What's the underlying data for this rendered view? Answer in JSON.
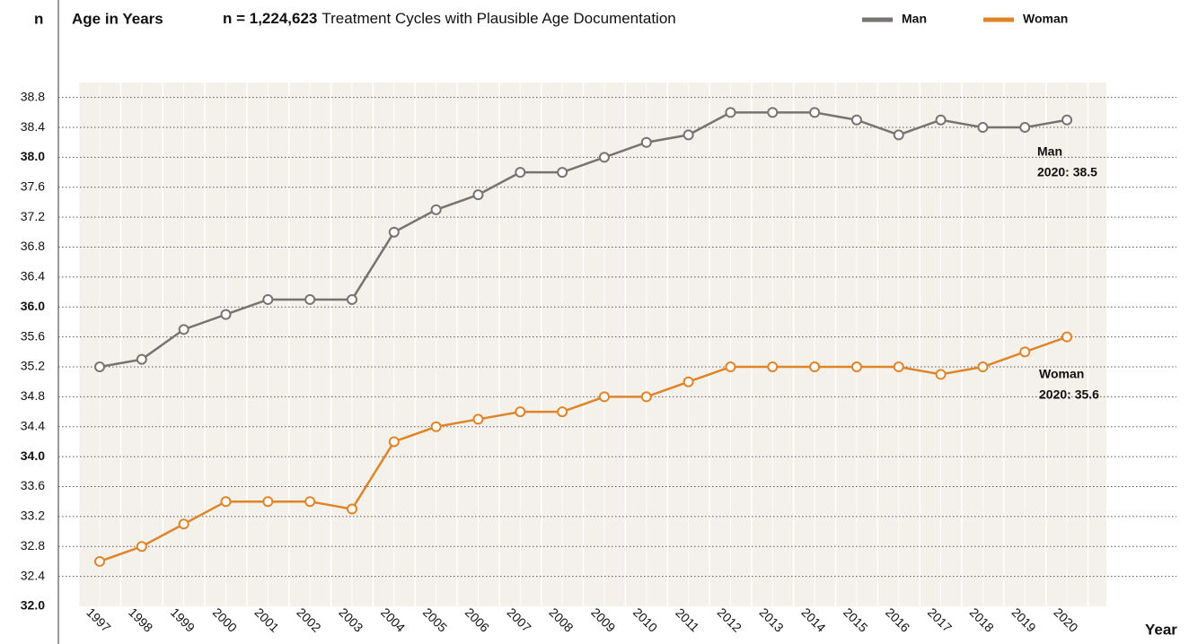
{
  "chart_data": {
    "type": "line",
    "y_label": "n",
    "title": "Age in Years",
    "subtitle_bold": "n = 1,224,623",
    "subtitle": "Treatment Cycles with Plausible Age Documentation",
    "x_label": "Year",
    "categories": [
      "1997",
      "1998",
      "1999",
      "2000",
      "2001",
      "2002",
      "2003",
      "2004",
      "2005",
      "2006",
      "2007",
      "2008",
      "2009",
      "2010",
      "2011",
      "2012",
      "2013",
      "2014",
      "2015",
      "2016",
      "2017",
      "2018",
      "2019",
      "2020"
    ],
    "series": [
      {
        "name": "Man",
        "color": "#77736f",
        "values": [
          35.2,
          35.3,
          35.7,
          35.9,
          36.1,
          36.1,
          36.1,
          37.0,
          37.3,
          37.5,
          37.8,
          37.8,
          38.0,
          38.2,
          38.3,
          38.6,
          38.6,
          38.6,
          38.5,
          38.3,
          38.5,
          38.4,
          38.4,
          38.5
        ]
      },
      {
        "name": "Woman",
        "color": "#e0842a",
        "values": [
          32.6,
          32.8,
          33.1,
          33.4,
          33.4,
          33.4,
          33.3,
          34.2,
          34.4,
          34.5,
          34.6,
          34.6,
          34.8,
          34.8,
          35.0,
          35.2,
          35.2,
          35.2,
          35.2,
          35.2,
          35.1,
          35.2,
          35.4,
          35.6
        ]
      }
    ],
    "ylim": [
      32,
      39
    ],
    "yticks": [
      {
        "value": 32,
        "label": "32.0"
      },
      32.4,
      32.8,
      33.2,
      33.6,
      {
        "value": 34,
        "label": "34.0"
      },
      34.4,
      34.8,
      35.2,
      35.6,
      {
        "value": 36,
        "label": "36.0"
      },
      36.4,
      36.8,
      37.2,
      37.6,
      {
        "value": 38,
        "label": "38.0"
      },
      38.4,
      38.8
    ],
    "grid": true,
    "legend": "top-right",
    "annotations": [
      {
        "series": 0,
        "lines": [
          "Man",
          "2020: 38.5"
        ]
      },
      {
        "series": 1,
        "lines": [
          "Woman",
          "2020: 35.6"
        ]
      }
    ]
  }
}
